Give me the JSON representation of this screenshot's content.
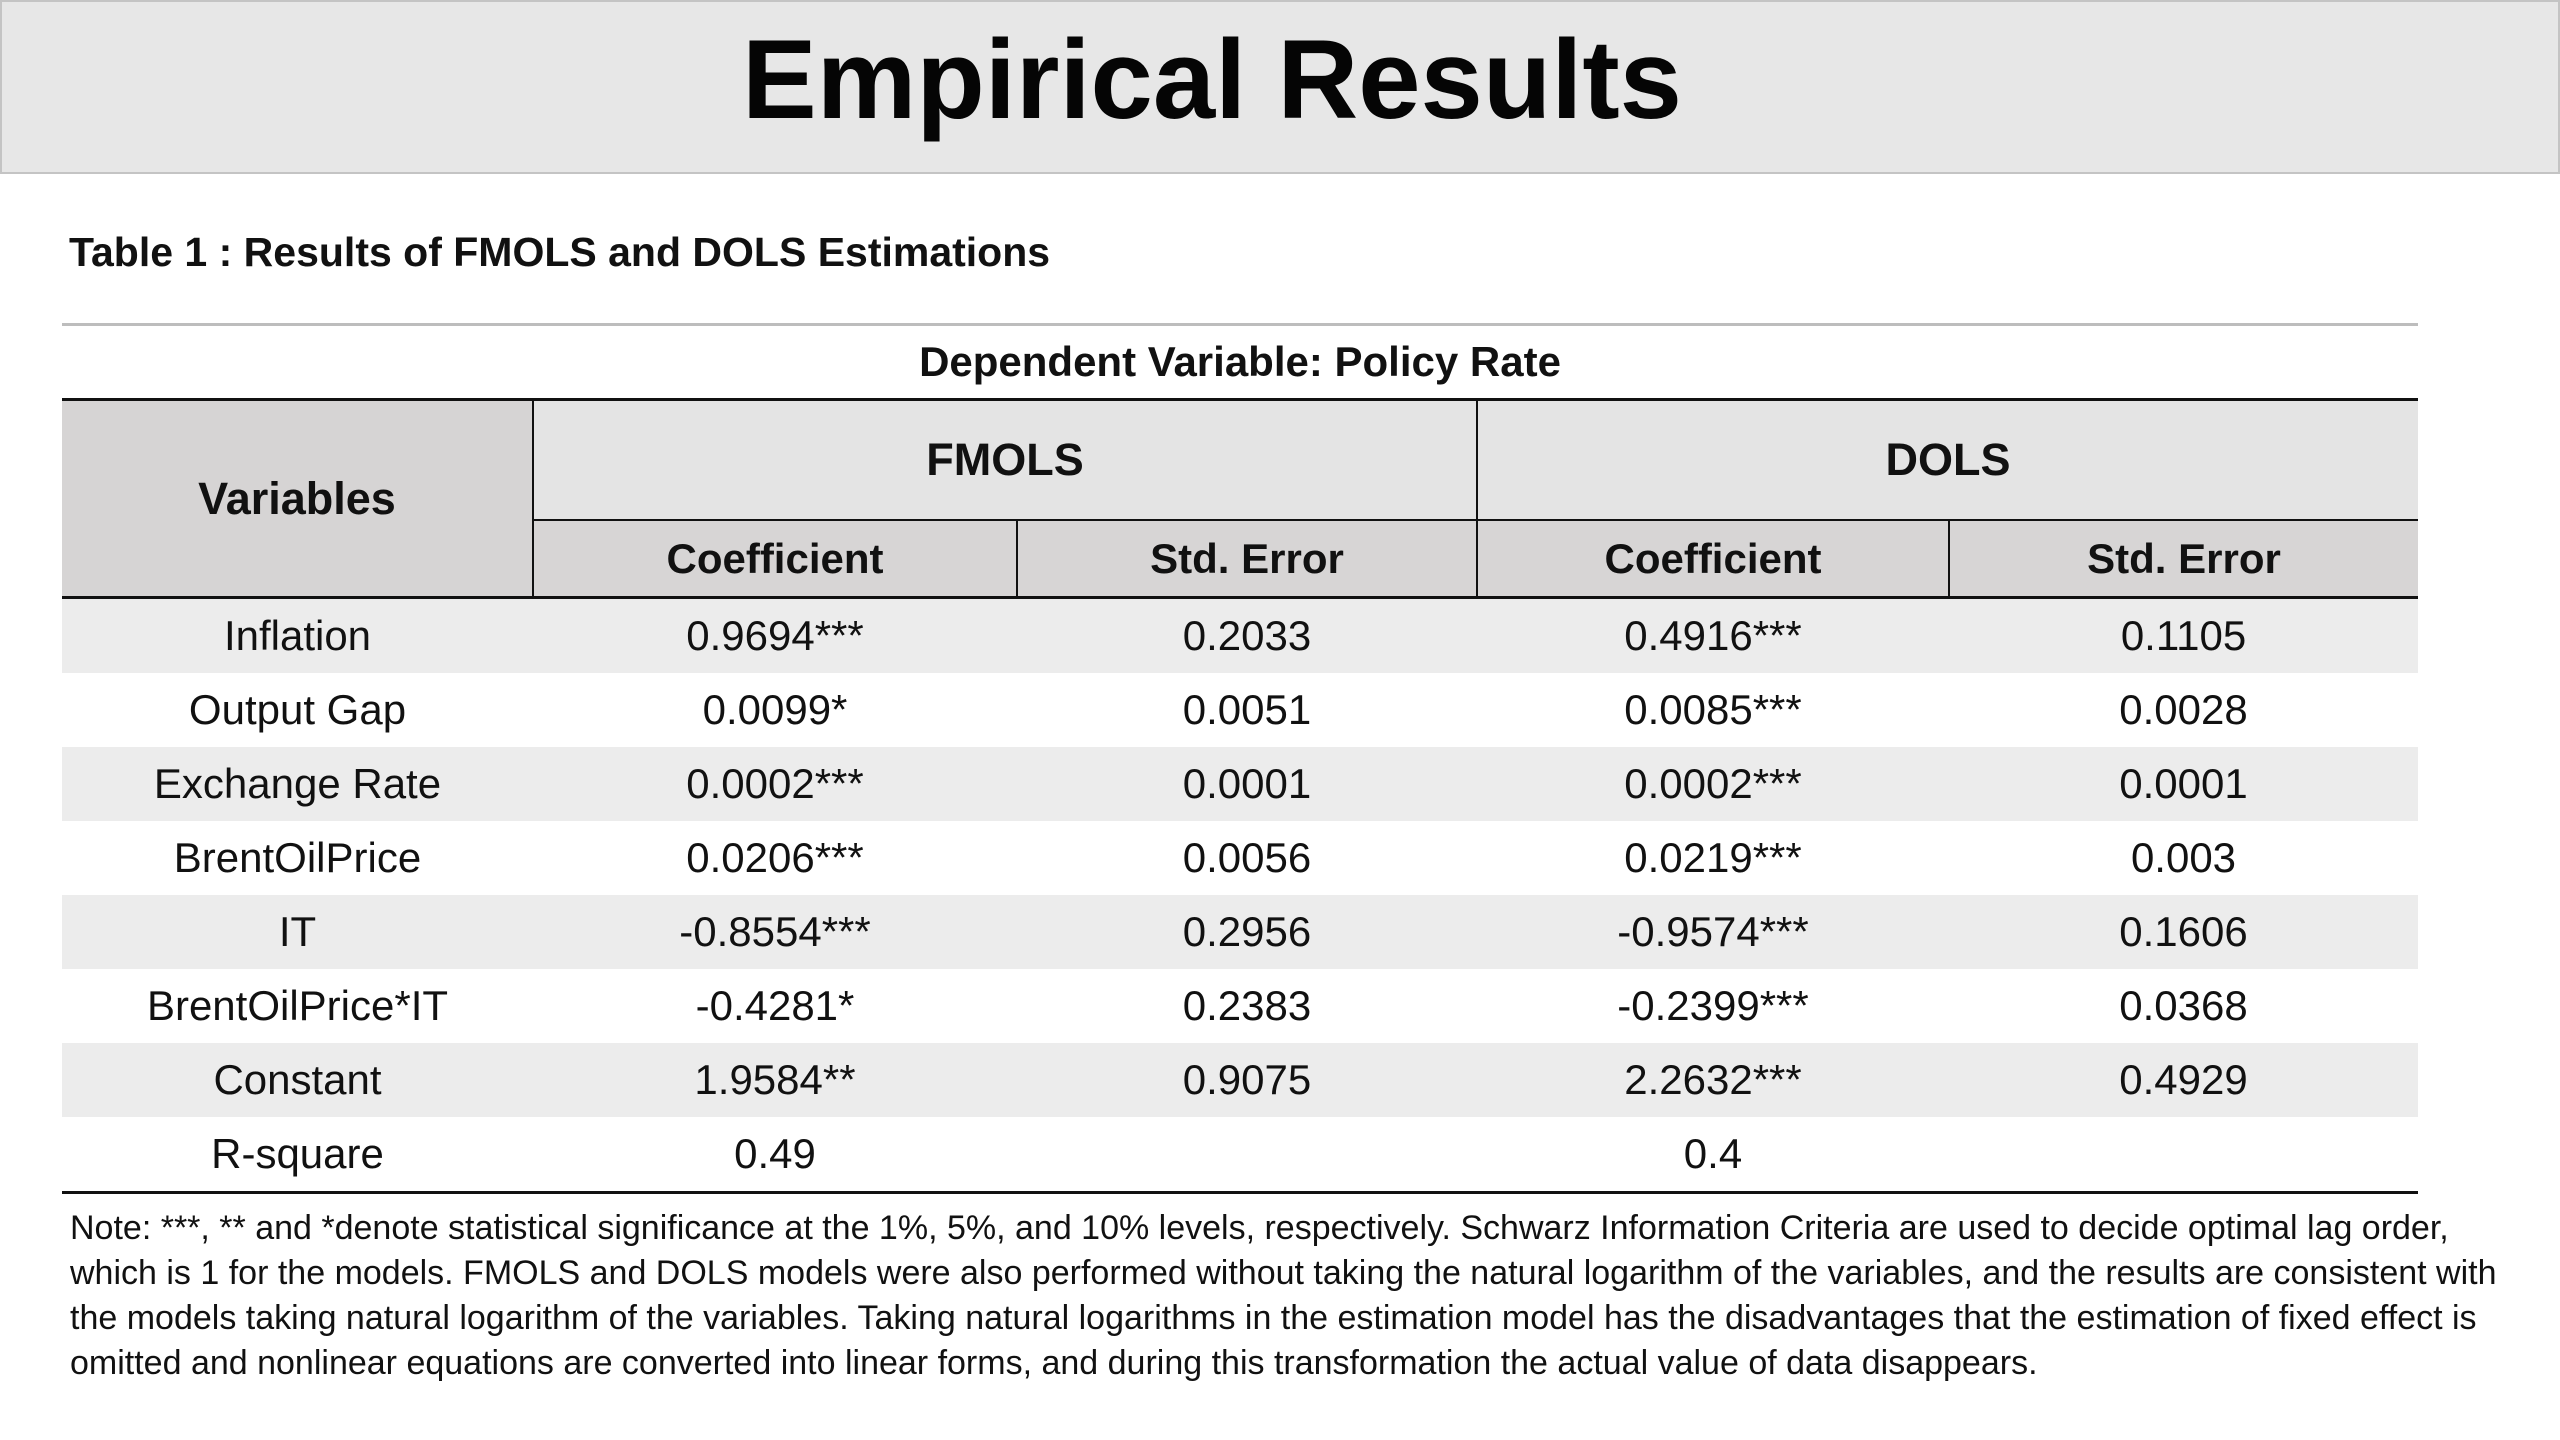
{
  "slide": {
    "title": "Empirical Results"
  },
  "table": {
    "caption": "Table 1 : Results of FMOLS and DOLS Estimations",
    "dependent_variable": "Dependent Variable: Policy Rate",
    "variables_header": "Variables",
    "groups": [
      "FMOLS",
      "DOLS"
    ],
    "subheaders": [
      "Coefficient",
      "Std. Error",
      "Coefficient",
      "Std. Error"
    ],
    "rows": [
      [
        "Inflation",
        "0.9694***",
        "0.2033",
        "0.4916***",
        "0.1105"
      ],
      [
        "Output Gap",
        "0.0099*",
        "0.0051",
        "0.0085***",
        "0.0028"
      ],
      [
        "Exchange Rate",
        "0.0002***",
        "0.0001",
        "0.0002***",
        "0.0001"
      ],
      [
        "BrentOilPrice",
        "0.0206***",
        "0.0056",
        "0.0219***",
        "0.003"
      ],
      [
        "IT",
        "-0.8554***",
        "0.2956",
        "-0.9574***",
        "0.1606"
      ],
      [
        "BrentOilPrice*IT",
        "-0.4281*",
        "0.2383",
        "-0.2399***",
        "0.0368"
      ],
      [
        "Constant",
        "1.9584**",
        "0.9075",
        "2.2632***",
        "0.4929"
      ],
      [
        "R-square",
        "0.49",
        "",
        "0.4",
        ""
      ]
    ],
    "note": "Note: ***, ** and *denote statistical significance at the 1%, 5%, and 10% levels, respectively. Schwarz Information Criteria are used to decide optimal lag order, which is 1 for the models. FMOLS and DOLS models were also performed without taking the natural logarithm of the variables, and the results are consistent with the models taking natural logarithm of the variables. Taking natural logarithms in the estimation model has the disadvantages that the estimation of fixed effect is omitted and nonlinear equations are converted into linear forms, and during this transformation the actual value of data disappears."
  },
  "colors": {
    "title_background": "#e7e7e7",
    "header_background": "#e4e4e4",
    "subheader_background": "#d7d5d5",
    "row_shade": "#ececec"
  }
}
